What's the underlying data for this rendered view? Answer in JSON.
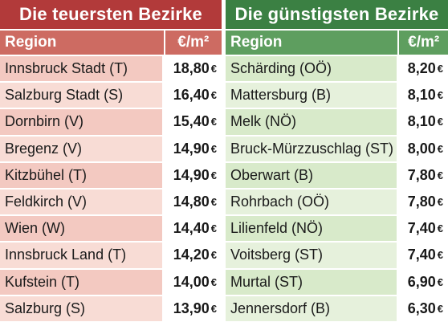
{
  "colors": {
    "expensive_title": "#b23a3a",
    "expensive_header": "#cd6b62",
    "expensive_row": "#f3c9c1",
    "cheap_title": "#3b8043",
    "cheap_header": "#5e9e5f",
    "cheap_row": "#d8eaca"
  },
  "expensive": {
    "title": "Die teuersten Bezirke",
    "col_region": "Region",
    "col_price": "€/m²",
    "rows": [
      {
        "region": "Innsbruck Stadt (T)",
        "price": "18,80",
        "unit": "€"
      },
      {
        "region": "Salzburg Stadt (S)",
        "price": "16,40",
        "unit": "€"
      },
      {
        "region": "Dornbirn (V)",
        "price": "15,40",
        "unit": "€"
      },
      {
        "region": "Bregenz (V)",
        "price": "14,90",
        "unit": "€"
      },
      {
        "region": "Kitzbühel (T)",
        "price": "14,90",
        "unit": "€"
      },
      {
        "region": "Feldkirch (V)",
        "price": "14,80",
        "unit": "€"
      },
      {
        "region": "Wien (W)",
        "price": "14,40",
        "unit": "€"
      },
      {
        "region": "Innsbruck Land (T)",
        "price": "14,20",
        "unit": "€"
      },
      {
        "region": "Kufstein (T)",
        "price": "14,00",
        "unit": "€"
      },
      {
        "region": "Salzburg (S)",
        "price": "13,90",
        "unit": "€"
      }
    ]
  },
  "cheapest": {
    "title": "Die günstigsten Bezirke",
    "col_region": "Region",
    "col_price": "€/m²",
    "rows": [
      {
        "region": "Schärding (OÖ)",
        "price": "8,20",
        "unit": "€"
      },
      {
        "region": "Mattersburg (B)",
        "price": "8,10",
        "unit": "€"
      },
      {
        "region": "Melk (NÖ)",
        "price": "8,10",
        "unit": "€"
      },
      {
        "region": "Bruck-Mürzzuschlag (ST)",
        "price": "8,00",
        "unit": "€"
      },
      {
        "region": "Oberwart (B)",
        "price": "7,80",
        "unit": "€"
      },
      {
        "region": "Rohrbach (OÖ)",
        "price": "7,80",
        "unit": "€"
      },
      {
        "region": "Lilienfeld (NÖ)",
        "price": "7,40",
        "unit": "€"
      },
      {
        "region": "Voitsberg (ST)",
        "price": "7,40",
        "unit": "€"
      },
      {
        "region": "Murtal (ST)",
        "price": "6,90",
        "unit": "€"
      },
      {
        "region": "Jennersdorf (B)",
        "price": "6,30",
        "unit": "€"
      }
    ]
  }
}
